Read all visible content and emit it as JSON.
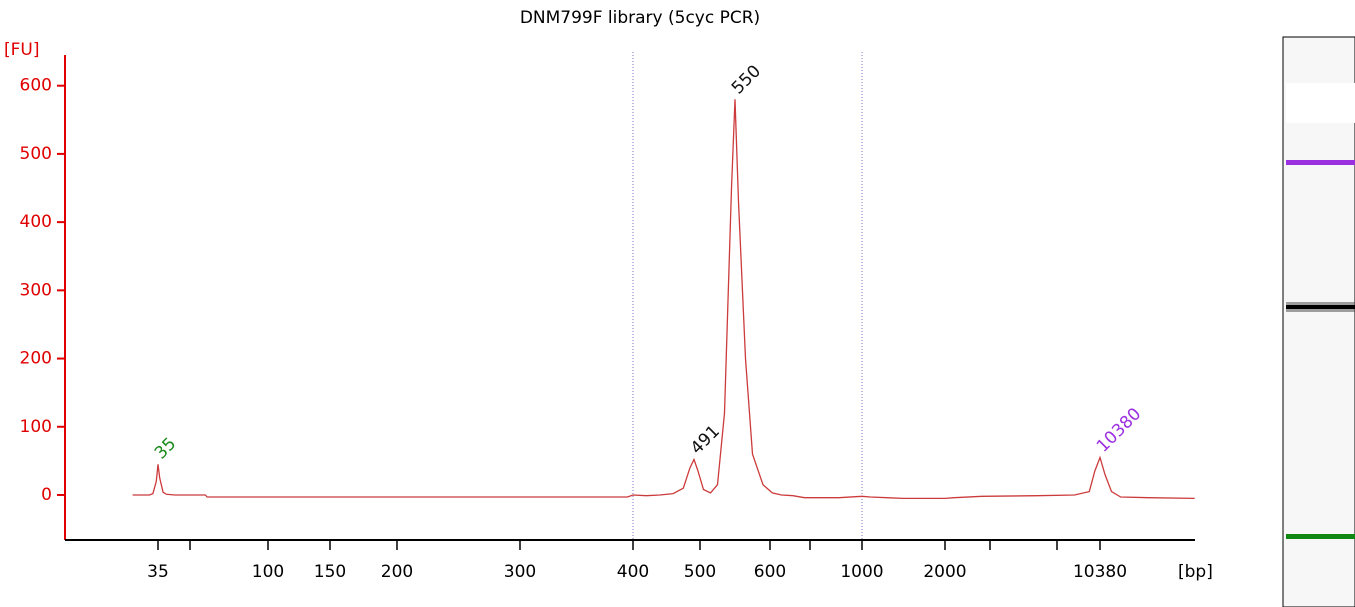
{
  "chart_data": {
    "type": "line",
    "title": "DNM799F library (5cyc PCR)",
    "y_label": "[FU]",
    "x_label": "[bp]",
    "ylim": [
      -66,
      645
    ],
    "yticks": [
      0,
      100,
      200,
      300,
      400,
      500,
      600
    ],
    "xticks": [
      35,
      100,
      150,
      200,
      300,
      400,
      500,
      600,
      1000,
      2000,
      10380
    ],
    "regions": [
      400,
      1000
    ],
    "series": [
      {
        "color": "#cc3b3b",
        "x": [
          20,
          30,
          32,
          34,
          35,
          36,
          38,
          40,
          45,
          63,
          64,
          150,
          300,
          395,
          400,
          420,
          440,
          460,
          475,
          485,
          491,
          497,
          505,
          515,
          525,
          535,
          545,
          550,
          555,
          565,
          575,
          590,
          610,
          650,
          700,
          750,
          900,
          1000,
          1100,
          1500,
          2000,
          2500,
          4000,
          7000,
          9000,
          9800,
          10100,
          10380,
          10650,
          11000,
          11500,
          13000,
          15500
        ],
        "values": [
          0,
          0,
          2,
          20,
          45,
          25,
          4,
          1,
          0,
          0,
          -3,
          -3,
          -3,
          -3,
          0,
          -1,
          0,
          2,
          10,
          40,
          52,
          35,
          8,
          3,
          15,
          120,
          450,
          580,
          430,
          200,
          60,
          15,
          3,
          0,
          -1,
          -4,
          -4,
          -2,
          -3,
          -5,
          -5,
          -4,
          -2,
          -1,
          0,
          5,
          35,
          55,
          30,
          5,
          -3,
          -4,
          -5
        ]
      }
    ],
    "peaks": [
      {
        "x": 35,
        "y": 45,
        "color": "#1a8a1a"
      },
      {
        "x": 491,
        "y": 52,
        "color": "#111111"
      },
      {
        "x": 550,
        "y": 580,
        "color": "#111111"
      },
      {
        "x": 10380,
        "y": 55,
        "color": "#9b30e0"
      }
    ]
  }
}
